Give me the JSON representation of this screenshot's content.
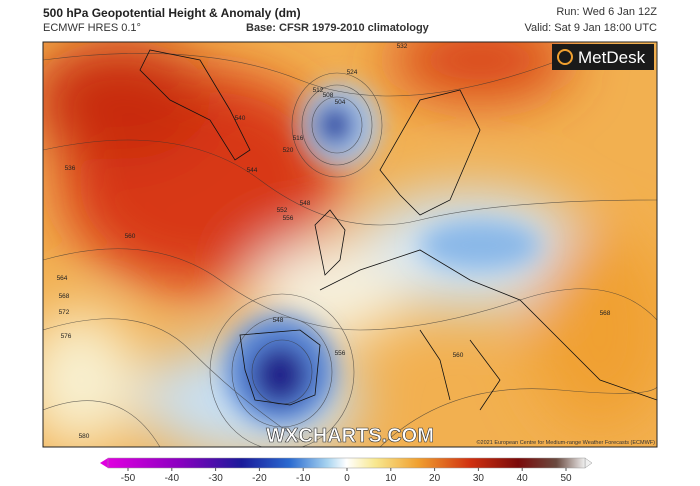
{
  "header": {
    "title": "500 hPa Geopotential Height & Anomaly (dm)",
    "model": "ECMWF HRES 0.1°",
    "base": "Base: CFSR 1979-2010 climatology",
    "run": "Run: Wed 6 Jan 12Z",
    "valid": "Valid: Sat 9 Jan 18:00 UTC"
  },
  "map": {
    "logo": "MetDesk",
    "watermark": "WXCHARTS.COM",
    "copyright": "©2021 European Centre for Medium-range Weather Forecasts (ECMWF)",
    "contour_labels": [
      512,
      508,
      504,
      516,
      520,
      524,
      532,
      536,
      540,
      544,
      548,
      552,
      556,
      560,
      564,
      568,
      572,
      576,
      580,
      548,
      556,
      560,
      568
    ]
  },
  "colorbar": {
    "ticks": [
      -50,
      -40,
      -30,
      -20,
      -10,
      0,
      10,
      20,
      30,
      40,
      50
    ]
  }
}
